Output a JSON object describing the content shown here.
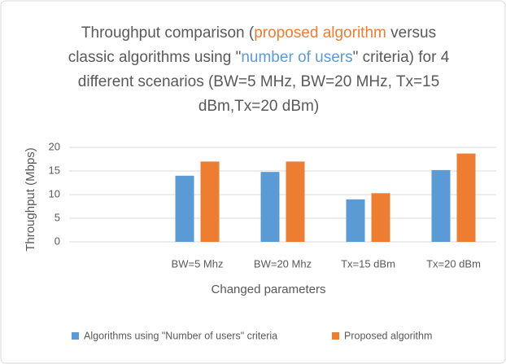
{
  "chart_data": {
    "type": "bar",
    "title": [
      {
        "text": "Throughput comparison ("
      },
      {
        "text": "proposed algorithm",
        "color": "#ed7d31"
      },
      {
        "text": " versus classic algorithms using \""
      },
      {
        "text": "number of users",
        "color": "#5b9bd5"
      },
      {
        "text": "\" criteria) for 4 different scenarios (BW=5 MHz, BW=20 MHz, Tx=15 dBm,Tx=20 dBm)"
      }
    ],
    "x_label": "Changed parameters",
    "y_label": "Throughput (Mbps)",
    "categories": [
      null,
      "BW=5 Mhz",
      "BW=20 Mhz",
      "Tx=15 dBm",
      "Tx=20 dBm"
    ],
    "series": [
      {
        "name": "Algorithms using \"Number of users\" criteria",
        "color": "#5b9bd5",
        "values": [
          null,
          14,
          14.8,
          9,
          15.2
        ]
      },
      {
        "name": "Proposed algorithm",
        "color": "#ed7d31",
        "values": [
          null,
          17,
          17,
          10.3,
          18.7
        ]
      }
    ],
    "ylim": [
      0,
      20
    ],
    "yticks": [
      0,
      5,
      10,
      15,
      20
    ],
    "grid": true,
    "legend": "bottom"
  }
}
